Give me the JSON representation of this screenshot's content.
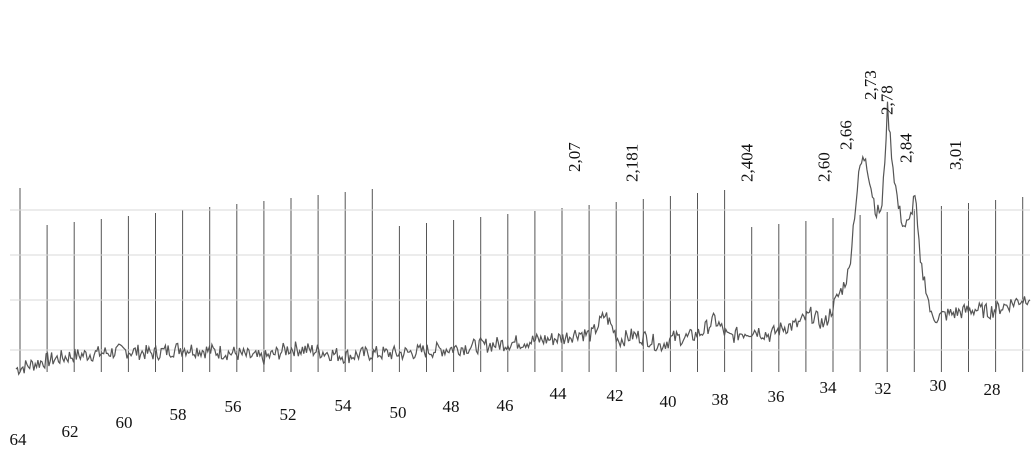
{
  "chart_data": {
    "type": "line",
    "title": "",
    "xlabel": "",
    "ylabel": "",
    "x_direction": "decreasing-left-to-right",
    "xlim": [
      64,
      27
    ],
    "grid": false,
    "tick_labels": [
      "64",
      "62",
      "60",
      "58",
      "56",
      "52",
      "54",
      "50",
      "48",
      "46",
      "44",
      "42",
      "40",
      "38",
      "36",
      "34",
      "32",
      "30",
      "28"
    ],
    "series": [
      {
        "x": [
          64,
          63,
          62,
          61,
          60,
          59,
          58,
          57,
          56,
          55,
          54,
          53,
          52,
          51,
          50,
          49,
          48,
          47,
          46,
          45,
          44,
          43.5,
          43,
          42.5,
          42,
          41.5,
          41,
          40.5,
          40,
          39.5,
          39,
          38.5,
          38,
          37.5,
          37,
          36.5,
          36,
          35.5,
          35,
          34.5,
          34,
          33.8,
          33.6,
          33.4,
          33.2,
          33.0,
          32.8,
          32.6,
          32.4,
          32.2,
          32.0,
          31.8,
          31.6,
          31.4,
          31.2,
          31.0,
          30.8,
          30.6,
          30.4,
          30.0,
          29.5,
          29,
          28.5,
          28,
          27.5,
          27
        ],
        "y": [
          10,
          13,
          15,
          16,
          17,
          16,
          18,
          17,
          16,
          14,
          18,
          17,
          15,
          16,
          16,
          17,
          18,
          19,
          20,
          21,
          22,
          24,
          23,
          31,
          21,
          23,
          22,
          19,
          22,
          22,
          24,
          29,
          22,
          24,
          25,
          23,
          26,
          27,
          31,
          27,
          38,
          42,
          48,
          70,
          88,
          92,
          80,
          70,
          72,
          110,
          88,
          72,
          65,
          66,
          78,
          50,
          42,
          30,
          30,
          31,
          32,
          33,
          32,
          34,
          36,
          38
        ]
      }
    ],
    "peak_labels": [
      {
        "text": "2,07",
        "x": 43.6
      },
      {
        "text": "2,181",
        "x": 41.5
      },
      {
        "text": "2,404",
        "x": 37.3
      },
      {
        "text": "2,60",
        "x": 34.5
      },
      {
        "text": "2,66",
        "x": 33.7
      },
      {
        "text": "2,73",
        "x": 32.8
      },
      {
        "text": "2,78",
        "x": 32.2
      },
      {
        "text": "2,84",
        "x": 31.5
      },
      {
        "text": "3,01",
        "x": 29.7
      }
    ]
  }
}
